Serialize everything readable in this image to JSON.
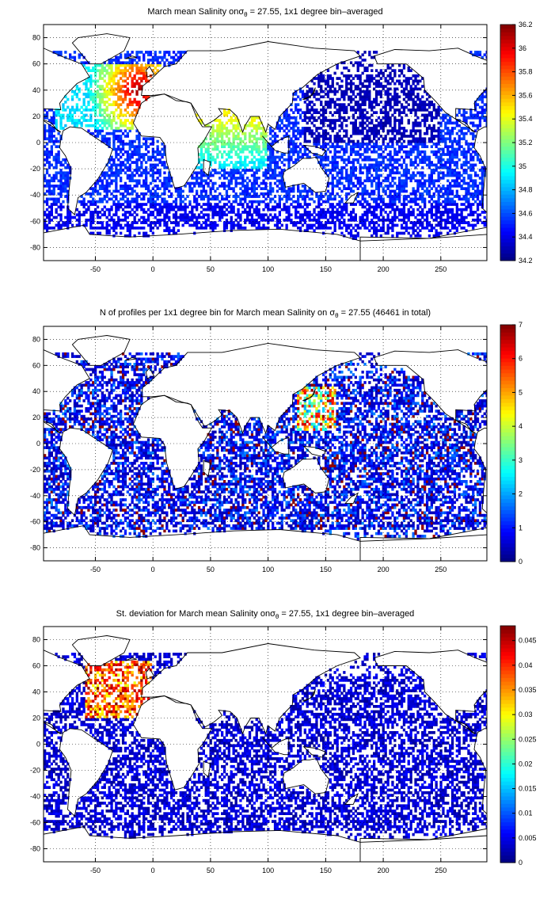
{
  "chart_data": [
    {
      "type": "heatmap",
      "title": "March mean Salinity on σθ = 27.55, 1x1 degree bin–averaged",
      "title_parts": {
        "before": "March mean Salinity on",
        "sigma": "σ",
        "sub": "θ",
        "after": " = 27.55, 1x1 degree bin–averaged"
      },
      "xlim": [
        -95,
        290
      ],
      "ylim": [
        -90,
        90
      ],
      "xticks": [
        -50,
        0,
        50,
        100,
        150,
        200,
        250
      ],
      "yticks": [
        80,
        60,
        40,
        20,
        0,
        -20,
        -40,
        -60,
        -80
      ],
      "grid": true,
      "colormap": "jet",
      "colorbar": {
        "min": 34.2,
        "max": 36.2,
        "ticks": [
          "36.2",
          "36",
          "35.8",
          "35.6",
          "35.4",
          "35.2",
          "35",
          "34.8",
          "34.6",
          "34.4",
          "34.2"
        ]
      },
      "field": "salinity",
      "seed": 11,
      "density": 0.58
    },
    {
      "type": "heatmap",
      "title": "N of profiles per 1x1 degree bin for March mean Salinity on σθ = 27.55 (46461 in total)",
      "title_parts": {
        "before": "N of profiles per 1x1 degree bin for March mean Salinity on ",
        "sigma": "σ",
        "sub": "θ",
        "after": " = 27.55 (46461 in total)"
      },
      "xlim": [
        -95,
        290
      ],
      "ylim": [
        -90,
        90
      ],
      "xticks": [
        -50,
        0,
        50,
        100,
        150,
        200,
        250
      ],
      "yticks": [
        80,
        60,
        40,
        20,
        0,
        -20,
        -40,
        -60,
        -80
      ],
      "grid": true,
      "colormap": "jet",
      "colorbar": {
        "min": 0,
        "max": 7,
        "ticks": [
          "7",
          "6",
          "5",
          "4",
          "3",
          "2",
          "1",
          "0"
        ]
      },
      "field": "count",
      "seed": 23,
      "density": 0.62
    },
    {
      "type": "heatmap",
      "title": "St. deviation for March mean Salinity on σθ = 27.55, 1x1 degree bin–averaged",
      "title_parts": {
        "before": "St. deviation for March mean Salinity on",
        "sigma": "σ",
        "sub": "θ",
        "after": " = 27.55, 1x1 degree bin–averaged"
      },
      "xlim": [
        -95,
        290
      ],
      "ylim": [
        -90,
        90
      ],
      "xticks": [
        -50,
        0,
        50,
        100,
        150,
        200,
        250
      ],
      "yticks": [
        80,
        60,
        40,
        20,
        0,
        -20,
        -40,
        -60,
        -80
      ],
      "grid": true,
      "colormap": "jet",
      "colorbar": {
        "min": 0,
        "max": 0.048,
        "ticks": [
          "0.045",
          "0.04",
          "0.035",
          "0.03",
          "0.025",
          "0.02",
          "0.015",
          "0.01",
          "0.005",
          "0"
        ]
      },
      "field": "stdev",
      "seed": 37,
      "density": 0.58
    }
  ]
}
